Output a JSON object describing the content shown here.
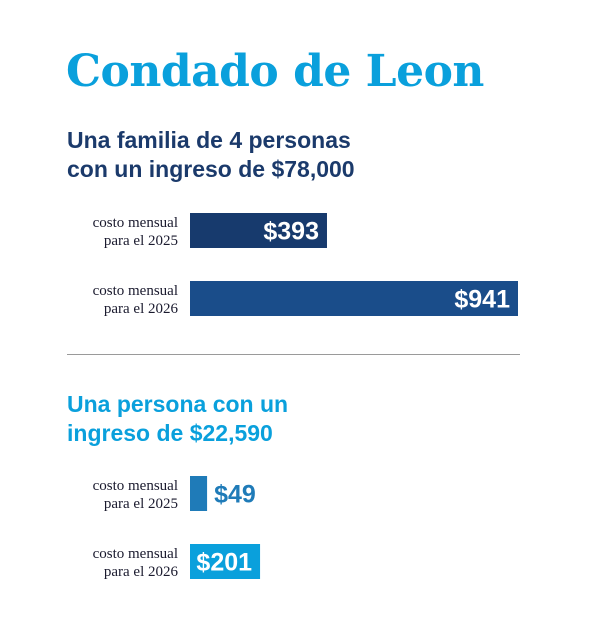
{
  "title": "Condado de Leon",
  "chart_data": [
    {
      "type": "bar",
      "orientation": "horizontal",
      "title": "Una familia de 4 personas con un ingreso de $78,000",
      "title_lines": [
        "Una familia de 4 personas",
        "con un ingreso de $78,000"
      ],
      "categories": [
        "costo mensual para el 2025",
        "costo mensual para el 2026"
      ],
      "category_lines": [
        [
          "costo mensual",
          "para el 2025"
        ],
        [
          "costo mensual",
          "para el 2026"
        ]
      ],
      "values": [
        393,
        941
      ],
      "value_labels": [
        "$393",
        "$941"
      ],
      "colors": [
        "#173a6d",
        "#1a4d8a"
      ],
      "xlim": [
        0,
        941
      ]
    },
    {
      "type": "bar",
      "orientation": "horizontal",
      "title": "Una persona con un ingreso de $22,590",
      "title_lines": [
        "Una persona con un",
        "ingreso de $22,590"
      ],
      "categories": [
        "costo mensual para el 2025",
        "costo mensual para el 2026"
      ],
      "category_lines": [
        [
          "costo mensual",
          "para el 2025"
        ],
        [
          "costo mensual",
          "para el 2026"
        ]
      ],
      "values": [
        49,
        201
      ],
      "value_labels": [
        "$49",
        "$201"
      ],
      "colors": [
        "#1f7bb8",
        "#0aa0dc"
      ],
      "xlim": [
        0,
        941
      ]
    }
  ]
}
